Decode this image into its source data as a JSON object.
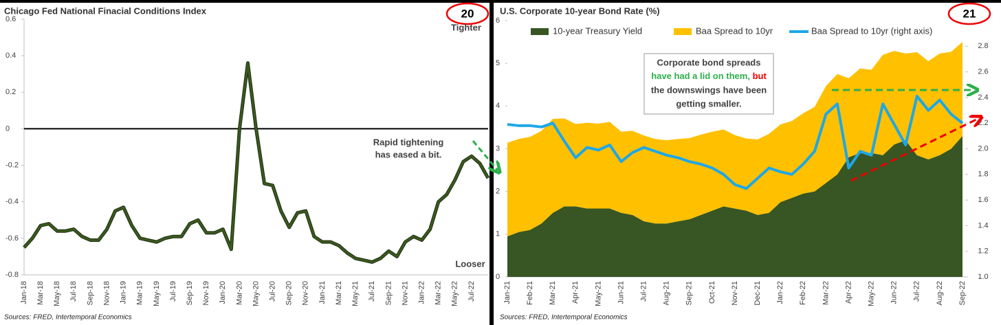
{
  "chart_data": [
    {
      "type": "line",
      "title": "Chicago Fed National Finacial Conditions Index",
      "badge": "20",
      "annotations": [
        "Tighter",
        "Looser",
        "Rapid tightening",
        "has eased a bit."
      ],
      "source": "Sources: FRED, Intertemporal Economics",
      "categories": [
        "Jan-18",
        null,
        "Mar-18",
        null,
        "May-18",
        null,
        "Jul-18",
        null,
        "Sep-18",
        null,
        "Nov-18",
        null,
        "Jan-19",
        null,
        "Mar-19",
        null,
        "May-19",
        null,
        "Jul-19",
        null,
        "Sep-19",
        null,
        "Nov-19",
        null,
        "Jan-20",
        null,
        "Mar-20",
        null,
        "May-20",
        null,
        "Jul-20",
        null,
        "Sep-20",
        null,
        "Nov-20",
        null,
        "Jan-21",
        null,
        "Mar-21",
        null,
        "May-21",
        null,
        "Jul-21",
        null,
        "Sep-21",
        null,
        "Nov-21",
        null,
        "Jan-22",
        null,
        "Mar-22",
        null,
        "May-22",
        null,
        "Jul-22",
        null,
        null
      ],
      "values": [
        -0.65,
        -0.6,
        -0.53,
        -0.52,
        -0.56,
        -0.56,
        -0.55,
        -0.59,
        -0.61,
        -0.61,
        -0.55,
        -0.45,
        -0.43,
        -0.53,
        -0.6,
        -0.61,
        -0.62,
        -0.6,
        -0.59,
        -0.59,
        -0.52,
        -0.5,
        -0.57,
        -0.57,
        -0.55,
        -0.66,
        0.0,
        0.36,
        0.0,
        -0.3,
        -0.31,
        -0.45,
        -0.54,
        -0.46,
        -0.45,
        -0.59,
        -0.62,
        -0.62,
        -0.64,
        -0.68,
        -0.71,
        -0.72,
        -0.73,
        -0.71,
        -0.67,
        -0.7,
        -0.62,
        -0.59,
        -0.61,
        -0.55,
        -0.4,
        -0.36,
        -0.28,
        -0.18,
        -0.15,
        -0.19,
        -0.27
      ],
      "color": "#3a5a1f",
      "ylim": [
        -0.8,
        0.6
      ],
      "yticks": [
        -0.8,
        -0.6,
        -0.4,
        -0.2,
        0,
        0.2,
        0.4,
        0.6
      ],
      "reference_line": 0
    },
    {
      "type": "area",
      "title": "U.S. Corporate 10-year Bond Rate (%)",
      "badge": "21",
      "annotations": [
        "Corporate bond spreads",
        "have had a lid on them, ",
        "but",
        "the downswings have been",
        "getting smaller."
      ],
      "source": "Sources: FRED, Intertemporal Economics",
      "categories": [
        "Jan-21",
        null,
        "Feb-21",
        null,
        "Mar-21",
        null,
        "Apr-21",
        null,
        "May-21",
        null,
        "Jun-21",
        null,
        "Jul-21",
        null,
        "Aug-21",
        null,
        "Sep-21",
        null,
        "Oct-21",
        null,
        "Nov-21",
        null,
        "Dec-21",
        null,
        "Jan-22",
        null,
        "Feb-22",
        null,
        "Mar-22",
        null,
        "Apr-22",
        null,
        "May-22",
        null,
        "Jun-22",
        null,
        "Jul-22",
        null,
        "Aug-22",
        null,
        "Sep-22"
      ],
      "series": [
        {
          "name": "10-year Treasury Yield",
          "color": "#375623",
          "stacked": true,
          "values": [
            0.95,
            1.05,
            1.1,
            1.25,
            1.5,
            1.65,
            1.65,
            1.6,
            1.6,
            1.6,
            1.5,
            1.45,
            1.3,
            1.25,
            1.25,
            1.3,
            1.35,
            1.45,
            1.55,
            1.65,
            1.6,
            1.55,
            1.45,
            1.5,
            1.75,
            1.85,
            1.95,
            2.0,
            2.2,
            2.4,
            2.8,
            2.9,
            2.9,
            2.85,
            3.1,
            3.2,
            2.85,
            2.75,
            2.85,
            3.0,
            3.3
          ]
        },
        {
          "name": "Baa Spread to 10yr",
          "color": "#ffc000",
          "stacked": true,
          "values": [
            2.19,
            2.18,
            2.18,
            2.17,
            2.2,
            2.06,
            1.93,
            2.01,
            1.99,
            2.03,
            1.9,
            1.97,
            2.01,
            1.98,
            1.95,
            1.93,
            1.9,
            1.88,
            1.85,
            1.8,
            1.72,
            1.69,
            1.77,
            1.85,
            1.82,
            1.8,
            1.88,
            1.98,
            2.27,
            2.35,
            1.85,
            1.98,
            1.95,
            2.35,
            2.19,
            2.03,
            2.41,
            2.3,
            2.38,
            2.27,
            2.2
          ]
        },
        {
          "name": "Baa Spread to 10yr (right axis)",
          "color": "#1ea7e8",
          "axis": "y2",
          "values": [
            2.19,
            2.18,
            2.18,
            2.17,
            2.2,
            2.06,
            1.93,
            2.01,
            1.99,
            2.03,
            1.9,
            1.97,
            2.01,
            1.98,
            1.95,
            1.93,
            1.9,
            1.88,
            1.85,
            1.8,
            1.72,
            1.69,
            1.77,
            1.85,
            1.82,
            1.8,
            1.88,
            1.98,
            2.27,
            2.35,
            1.85,
            1.98,
            1.95,
            2.35,
            2.19,
            2.03,
            2.41,
            2.3,
            2.38,
            2.27,
            2.2
          ]
        }
      ],
      "ylim": [
        0,
        6
      ],
      "yticks": [
        0,
        1,
        2,
        3,
        4,
        5,
        6
      ],
      "y2lim": [
        1,
        3
      ],
      "y2ticks": [
        {
          "value": 1,
          "label": "1.0"
        },
        1.2,
        1.4,
        1.6,
        1.8,
        {
          "value": 2,
          "label": "2.0"
        },
        2.2,
        2.4,
        2.6,
        2.8
      ]
    }
  ]
}
